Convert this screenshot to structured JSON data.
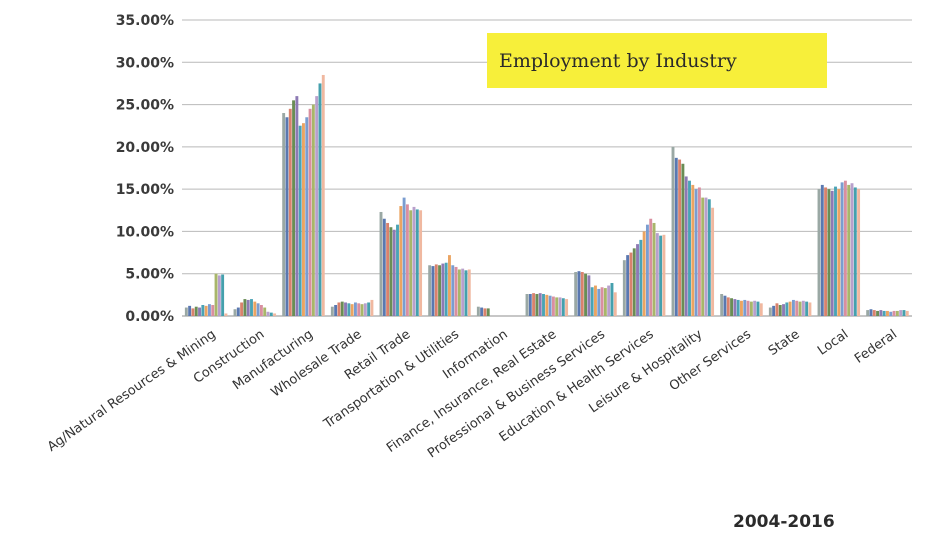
{
  "chart_data": {
    "type": "bar",
    "title": "Employment by Industry",
    "footnote": "2004-2016",
    "ylim": [
      0,
      35
    ],
    "yticks": [
      "0.00%",
      "5.00%",
      "10.00%",
      "15.00%",
      "20.00%",
      "25.00%",
      "30.00%",
      "35.00%"
    ],
    "ytick_values": [
      0,
      5,
      10,
      15,
      20,
      25,
      30,
      35
    ],
    "grid": true,
    "x_tick_rotation": -35,
    "series_colors": [
      "#9aa8a4",
      "#5a78b0",
      "#d9826d",
      "#6a8d55",
      "#8d7ab4",
      "#4aa3b5",
      "#eba462",
      "#7a9dd0",
      "#d98fa0",
      "#a8b66a",
      "#b8a0cc",
      "#45a0ad",
      "#f0b8a0"
    ],
    "categories": [
      "Ag/Natural Resources & Mining",
      "Construction",
      "Manufacturing",
      "Wholesale Trade",
      "Retail Trade",
      "Transportation & Utilities",
      "Information",
      "Finance, Insurance, Real Estate",
      "Professional & Business Services",
      "Education & Health Services",
      "Leisure & Hospitality",
      "Other Services",
      "State",
      "Local",
      "Federal"
    ],
    "values": [
      [
        1.0,
        1.2,
        0.9,
        1.1,
        1.0,
        1.3,
        1.2,
        1.4,
        1.3,
        5.0,
        4.8,
        4.9,
        0.3
      ],
      [
        0.8,
        1.0,
        1.6,
        2.0,
        1.9,
        2.0,
        1.7,
        1.5,
        1.3,
        1.0,
        0.5,
        0.4,
        0.3
      ],
      [
        24.0,
        23.5,
        24.5,
        25.5,
        26.0,
        22.5,
        22.8,
        23.5,
        24.5,
        25.0,
        26.0,
        27.5,
        28.5
      ],
      [
        1.1,
        1.3,
        1.6,
        1.7,
        1.6,
        1.5,
        1.4,
        1.6,
        1.5,
        1.4,
        1.5,
        1.6,
        1.9
      ],
      [
        12.3,
        11.5,
        11.0,
        10.5,
        10.2,
        10.8,
        13.0,
        14.0,
        13.2,
        12.5,
        12.9,
        12.6,
        12.5
      ],
      [
        6.0,
        5.9,
        6.1,
        6.0,
        6.2,
        6.3,
        7.2,
        6.0,
        5.8,
        5.5,
        5.6,
        5.4,
        5.5
      ],
      [
        1.1,
        1.0,
        0.9,
        0.9,
        0.0,
        0.0,
        0.0,
        0.0,
        0.0,
        0.0,
        0.0,
        0.0,
        0.0
      ],
      [
        2.6,
        2.6,
        2.7,
        2.6,
        2.7,
        2.6,
        2.5,
        2.4,
        2.3,
        2.2,
        2.2,
        2.1,
        2.0
      ],
      [
        5.2,
        5.3,
        5.2,
        5.0,
        4.8,
        3.4,
        3.6,
        3.2,
        3.4,
        3.3,
        3.6,
        3.9,
        2.8
      ],
      [
        6.6,
        7.2,
        7.5,
        8.0,
        8.5,
        9.0,
        10.0,
        10.8,
        11.5,
        11.0,
        9.8,
        9.5,
        9.6
      ],
      [
        20.0,
        18.7,
        18.5,
        18.0,
        16.5,
        16.0,
        15.5,
        15.0,
        15.2,
        14.0,
        14.0,
        13.8,
        12.8
      ],
      [
        2.6,
        2.4,
        2.2,
        2.1,
        2.0,
        1.9,
        1.8,
        1.9,
        1.8,
        1.7,
        1.8,
        1.7,
        1.5
      ],
      [
        1.0,
        1.2,
        1.5,
        1.3,
        1.4,
        1.6,
        1.7,
        1.9,
        1.8,
        1.7,
        1.8,
        1.7,
        1.6
      ],
      [
        15.0,
        15.5,
        15.2,
        15.0,
        14.8,
        15.3,
        15.0,
        15.8,
        16.0,
        15.5,
        15.7,
        15.2,
        15.0
      ],
      [
        0.7,
        0.8,
        0.7,
        0.6,
        0.7,
        0.6,
        0.6,
        0.5,
        0.6,
        0.6,
        0.7,
        0.7,
        0.6
      ]
    ]
  }
}
